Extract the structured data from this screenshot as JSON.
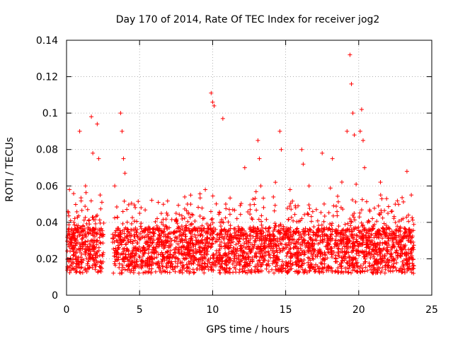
{
  "chart_data": {
    "type": "scatter",
    "title": "Day 170 of 2014, Rate Of TEC Index for receiver jog2",
    "xlabel": "GPS time / hours",
    "ylabel": "ROTI / TECUs",
    "xlim": [
      0,
      25
    ],
    "ylim": [
      0,
      0.14
    ],
    "grid": true,
    "marker": "+",
    "color": "#ff0000",
    "xticks": [
      0,
      5,
      10,
      15,
      20,
      25
    ],
    "xtick_labels": [
      "0",
      "5",
      "10",
      "15",
      "20",
      "25"
    ],
    "yticks": [
      0,
      0.02,
      0.04,
      0.06,
      0.08,
      0.1,
      0.12,
      0.14
    ],
    "ytick_labels": [
      "0",
      "0.02",
      "0.04",
      "0.06",
      "0.08",
      "0.1",
      "0.12",
      "0.14"
    ],
    "series": [
      {
        "name": "ROTI",
        "x": [
          0.1,
          0.2,
          0.5,
          0.9,
          1.3,
          1.7,
          1.8,
          2.1,
          2.2,
          2.3,
          3.3,
          3.7,
          3.8,
          3.9,
          4.0,
          6.5,
          7.5,
          8.5,
          9.5,
          9.9,
          10.0,
          10.1,
          10.7,
          12.2,
          13.1,
          13.2,
          13.3,
          14.3,
          14.6,
          14.7,
          15.3,
          16.1,
          16.2,
          16.6,
          17.5,
          18.2,
          19.2,
          19.4,
          19.5,
          19.6,
          19.7,
          20.1,
          20.2,
          20.3,
          20.4,
          21.5,
          22.0,
          22.5,
          23.3,
          23.6
        ],
        "y": [
          0.046,
          0.058,
          0.04,
          0.09,
          0.06,
          0.098,
          0.078,
          0.094,
          0.075,
          0.055,
          0.06,
          0.1,
          0.09,
          0.075,
          0.067,
          0.04,
          0.045,
          0.05,
          0.058,
          0.111,
          0.106,
          0.104,
          0.097,
          0.07,
          0.085,
          0.075,
          0.06,
          0.062,
          0.09,
          0.08,
          0.058,
          0.08,
          0.072,
          0.06,
          0.078,
          0.075,
          0.09,
          0.132,
          0.116,
          0.1,
          0.088,
          0.09,
          0.102,
          0.085,
          0.07,
          0.055,
          0.045,
          0.05,
          0.068,
          0.055
        ]
      }
    ]
  }
}
